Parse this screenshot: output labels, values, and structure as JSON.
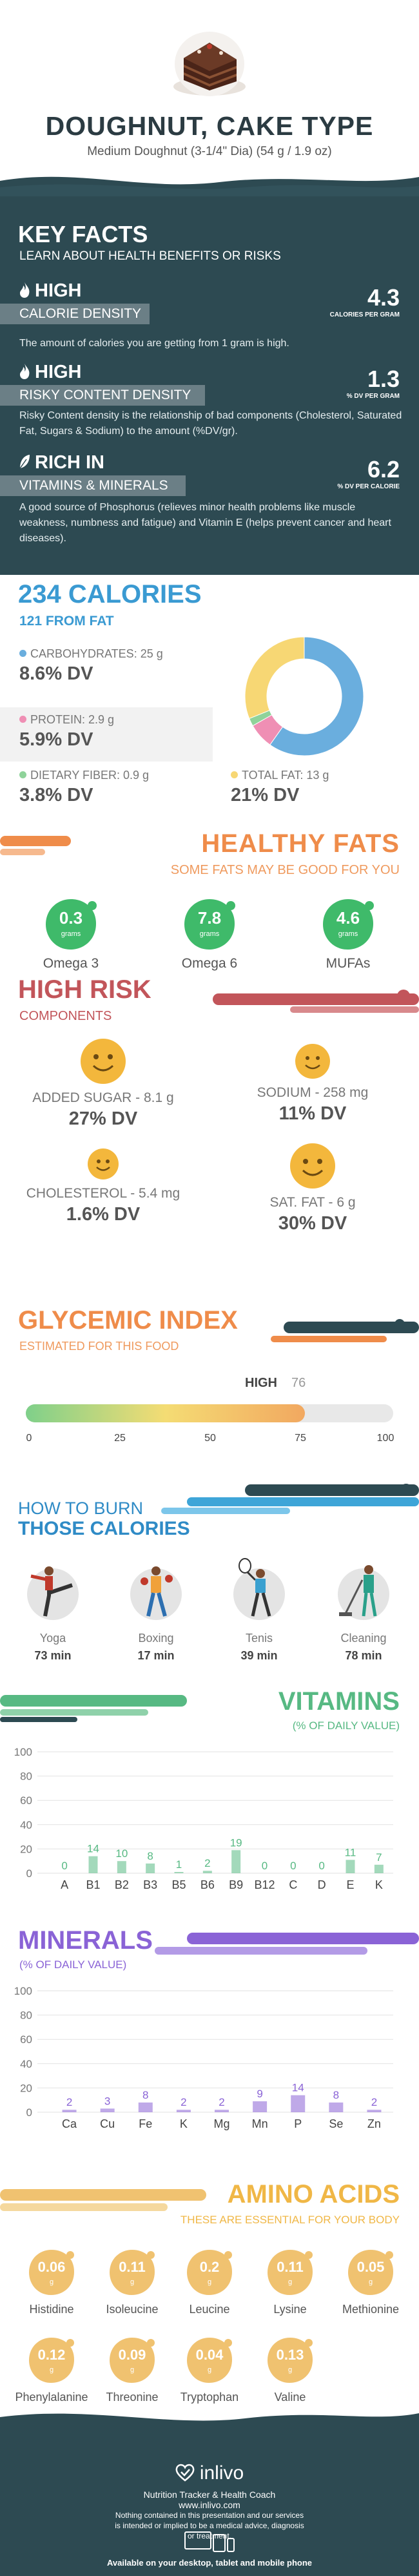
{
  "header": {
    "title": "DOUGHNUT, CAKE TYPE",
    "serving": "Medium Doughnut (3-1/4\" Dia) (54 g / 1.9 oz)"
  },
  "key_facts": {
    "title": "KEY FACTS",
    "subtitle": "LEARN ABOUT HEALTH BENEFITS OR RISKS",
    "items": [
      {
        "level": "HIGH",
        "label": "CALORIE DENSITY",
        "value": "4.3",
        "unit": "CALORIES PER GRAM",
        "icon": "flame-icon",
        "desc": "The amount of calories you are getting from 1 gram is high."
      },
      {
        "level": "HIGH",
        "label": "RISKY CONTENT DENSITY",
        "value": "1.3",
        "unit": "% DV PER GRAM",
        "icon": "flame-icon",
        "desc": "Risky Content density is the relationship of bad components (Cholesterol, Saturated Fat, Sugars & Sodium) to the amount (%DV/gr)."
      },
      {
        "level": "RICH IN",
        "label": "VITAMINS & MINERALS",
        "value": "6.2",
        "unit": "% DV PER CALORIE",
        "icon": "leaf-icon",
        "desc": "A good source of Phosphorus (relieves minor health problems like muscle weakness, numbness and fatigue) and Vitamin E (helps prevent cancer and heart diseases)."
      }
    ]
  },
  "calories": {
    "title": "234 CALORIES",
    "from_fat": "121 FROM FAT",
    "nutrients": [
      {
        "label": "CARBOHYDRATES: 25 g",
        "dv": "8.6% DV",
        "color": "#6aaede"
      },
      {
        "label": "PROTEIN: 2.9 g",
        "dv": "5.9% DV",
        "color": "#ef8fb4"
      },
      {
        "label": "DIETARY FIBER: 0.9 g",
        "dv": "3.8% DV",
        "color": "#8fd39a"
      },
      {
        "label": "TOTAL FAT: 13 g",
        "dv": "21% DV",
        "color": "#f7d774"
      }
    ],
    "chart_data": {
      "type": "pie",
      "categories": [
        "Carbohydrates",
        "Protein",
        "Dietary Fiber",
        "Total Fat"
      ],
      "values": [
        25,
        2.9,
        0.9,
        13
      ]
    }
  },
  "healthy_fats": {
    "title": "HEALTHY FATS",
    "subtitle": "SOME FATS MAY BE GOOD FOR YOU",
    "color": "#3fba6a",
    "items": [
      {
        "value": "0.3",
        "unit": "grams",
        "name": "Omega 3"
      },
      {
        "value": "7.8",
        "unit": "grams",
        "name": "Omega 6"
      },
      {
        "value": "4.6",
        "unit": "grams",
        "name": "MUFAs"
      }
    ]
  },
  "high_risk": {
    "title": "HIGH RISK",
    "subtitle": "COMPONENTS",
    "items": [
      {
        "label": "ADDED SUGAR - 8.1 g",
        "dv": "27% DV"
      },
      {
        "label": "SODIUM - 258 mg",
        "dv": "11% DV"
      },
      {
        "label": "CHOLESTEROL - 5.4 mg",
        "dv": "1.6% DV"
      },
      {
        "label": "SAT. FAT - 6 g",
        "dv": "30% DV"
      }
    ]
  },
  "glycemic": {
    "title": "GLYCEMIC INDEX",
    "subtitle": "ESTIMATED FOR THIS FOOD",
    "level": "HIGH",
    "value": 76,
    "value_label": "76",
    "ticks": [
      "0",
      "25",
      "50",
      "75",
      "100"
    ]
  },
  "burn": {
    "title_top": "HOW TO BURN",
    "title_bottom": "THOSE CALORIES",
    "activities": [
      {
        "name": "Yoga",
        "minutes": "73 min"
      },
      {
        "name": "Boxing",
        "minutes": "17 min"
      },
      {
        "name": "Tenis",
        "minutes": "39 min"
      },
      {
        "name": "Cleaning",
        "minutes": "78 min"
      }
    ]
  },
  "vitamins": {
    "title": "VITAMINS",
    "subtitle": "(% OF DAILY VALUE)",
    "color": "#57b983",
    "chart_data": {
      "type": "bar",
      "categories": [
        "A",
        "B1",
        "B2",
        "B3",
        "B5",
        "B6",
        "B9",
        "B12",
        "C",
        "D",
        "E",
        "K"
      ],
      "values": [
        0,
        14,
        10,
        8,
        1,
        2,
        19,
        0,
        0,
        0,
        11,
        7
      ],
      "yticks": [
        0,
        20,
        40,
        60,
        80,
        100
      ],
      "ylim": [
        0,
        100
      ]
    }
  },
  "minerals": {
    "title": "MINERALS",
    "subtitle": "(% OF DAILY VALUE)",
    "color": "#8a63d6",
    "chart_data": {
      "type": "bar",
      "categories": [
        "Ca",
        "Cu",
        "Fe",
        "K",
        "Mg",
        "Mn",
        "P",
        "Se",
        "Zn"
      ],
      "values": [
        2,
        3,
        8,
        2,
        2,
        9,
        14,
        8,
        2
      ],
      "yticks": [
        0,
        20,
        40,
        60,
        80,
        100
      ],
      "ylim": [
        0,
        100
      ]
    }
  },
  "amino": {
    "title": "AMINO ACIDS",
    "subtitle": "THESE ARE ESSENTIAL FOR YOUR BODY",
    "color": "#f0c270",
    "items": [
      {
        "value": "0.06",
        "unit": "g",
        "name": "Histidine"
      },
      {
        "value": "0.11",
        "unit": "g",
        "name": "Isoleucine"
      },
      {
        "value": "0.2",
        "unit": "g",
        "name": "Leucine"
      },
      {
        "value": "0.11",
        "unit": "g",
        "name": "Lysine"
      },
      {
        "value": "0.05",
        "unit": "g",
        "name": "Methionine"
      },
      {
        "value": "0.12",
        "unit": "g",
        "name": "Phenylalanine"
      },
      {
        "value": "0.09",
        "unit": "g",
        "name": "Threonine"
      },
      {
        "value": "0.04",
        "unit": "g",
        "name": "Tryptophan"
      },
      {
        "value": "0.13",
        "unit": "g",
        "name": "Valine"
      }
    ]
  },
  "footer": {
    "brand": "inlivo",
    "tagline": "Nutrition Tracker & Health Coach",
    "url": "www.inlivo.com",
    "disclaimer": "Nothing contained in this presentation and our services is intended or implied to be a medical advice, diagnosis or treatment.",
    "available": "Available on your desktop, tablet and mobile phone"
  }
}
